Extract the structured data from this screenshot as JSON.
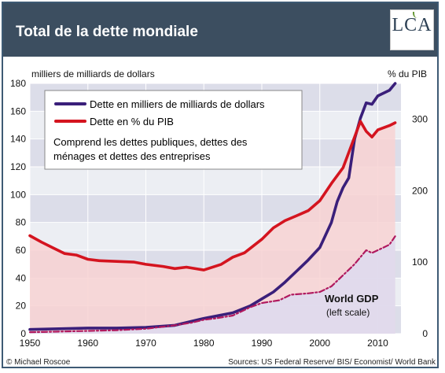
{
  "header": {
    "title": "Total de la dette mondiale",
    "logo_text": "LCA"
  },
  "chart_data": {
    "type": "line",
    "left_axis_label": "milliers de milliards de dollars",
    "right_axis_label": "% du PIB",
    "xlim": [
      1950,
      2014
    ],
    "ylim_left": [
      0,
      180
    ],
    "ylim_right": [
      0,
      350
    ],
    "x_ticks": [
      1950,
      1960,
      1970,
      1980,
      1990,
      2000,
      2010
    ],
    "y_left_ticks": [
      0,
      20,
      40,
      60,
      80,
      100,
      120,
      140,
      160,
      180
    ],
    "y_right_ticks": [
      0,
      100,
      200,
      300
    ],
    "legend": {
      "items": [
        {
          "label": "Dette en milliers de milliards de dollars",
          "color": "#3a1f7a"
        },
        {
          "label": "Dette en % du PIB",
          "color": "#d4141f"
        }
      ],
      "note_lines": [
        "Comprend les dettes publiques, dettes des",
        "ménages et dettes des entreprises"
      ]
    },
    "series": [
      {
        "name": "Dette en milliers de milliards de dollars",
        "axis": "left",
        "color": "#3a1f7a",
        "points": [
          [
            1950,
            3
          ],
          [
            1955,
            3.5
          ],
          [
            1960,
            4
          ],
          [
            1965,
            4
          ],
          [
            1970,
            4.5
          ],
          [
            1975,
            6
          ],
          [
            1980,
            11
          ],
          [
            1985,
            15
          ],
          [
            1988,
            20
          ],
          [
            1990,
            25
          ],
          [
            1992,
            30
          ],
          [
            1994,
            37
          ],
          [
            1996,
            45
          ],
          [
            1998,
            53
          ],
          [
            2000,
            62
          ],
          [
            2002,
            80
          ],
          [
            2003,
            95
          ],
          [
            2004,
            105
          ],
          [
            2005,
            112
          ],
          [
            2006,
            140
          ],
          [
            2007,
            155
          ],
          [
            2008,
            166
          ],
          [
            2009,
            165
          ],
          [
            2010,
            171
          ],
          [
            2012,
            175
          ],
          [
            2013,
            180
          ]
        ]
      },
      {
        "name": "Dette en % du PIB",
        "axis": "right",
        "color": "#d4141f",
        "fill": "#f8d2d2",
        "points": [
          [
            1950,
            137
          ],
          [
            1952,
            128
          ],
          [
            1954,
            120
          ],
          [
            1956,
            112
          ],
          [
            1958,
            110
          ],
          [
            1960,
            104
          ],
          [
            1962,
            102
          ],
          [
            1965,
            101
          ],
          [
            1968,
            100
          ],
          [
            1970,
            97
          ],
          [
            1973,
            94
          ],
          [
            1975,
            91
          ],
          [
            1977,
            93
          ],
          [
            1980,
            89
          ],
          [
            1983,
            97
          ],
          [
            1985,
            107
          ],
          [
            1987,
            113
          ],
          [
            1990,
            132
          ],
          [
            1992,
            148
          ],
          [
            1994,
            158
          ],
          [
            1996,
            165
          ],
          [
            1998,
            172
          ],
          [
            2000,
            186
          ],
          [
            2002,
            210
          ],
          [
            2004,
            232
          ],
          [
            2006,
            275
          ],
          [
            2007,
            297
          ],
          [
            2008,
            283
          ],
          [
            2009,
            275
          ],
          [
            2010,
            285
          ],
          [
            2012,
            291
          ],
          [
            2013,
            295
          ]
        ]
      },
      {
        "name": "World GDP",
        "axis": "left",
        "color": "#b0195e",
        "dashed": true,
        "fill": "#dddaf0",
        "points": [
          [
            1950,
            1
          ],
          [
            1955,
            1.5
          ],
          [
            1960,
            2
          ],
          [
            1965,
            2.5
          ],
          [
            1970,
            3.5
          ],
          [
            1975,
            6
          ],
          [
            1978,
            8
          ],
          [
            1980,
            10
          ],
          [
            1982,
            11
          ],
          [
            1985,
            13
          ],
          [
            1988,
            19
          ],
          [
            1990,
            22
          ],
          [
            1993,
            24
          ],
          [
            1995,
            28
          ],
          [
            1998,
            29
          ],
          [
            2000,
            30
          ],
          [
            2002,
            34
          ],
          [
            2004,
            42
          ],
          [
            2006,
            50
          ],
          [
            2007,
            55
          ],
          [
            2008,
            60
          ],
          [
            2009,
            58
          ],
          [
            2010,
            60
          ],
          [
            2012,
            64
          ],
          [
            2013,
            70
          ]
        ]
      }
    ],
    "annotations": [
      {
        "text": "World GDP"
      },
      {
        "text": "(left scale)"
      }
    ],
    "footer_left": "© Michael Roscoe",
    "footer_right": "Sources: US Federal Reserve/ BIS/ Economist/ World Bank",
    "grid": true,
    "background_band_colors": [
      "#dcdde9",
      "#eceef3"
    ]
  }
}
